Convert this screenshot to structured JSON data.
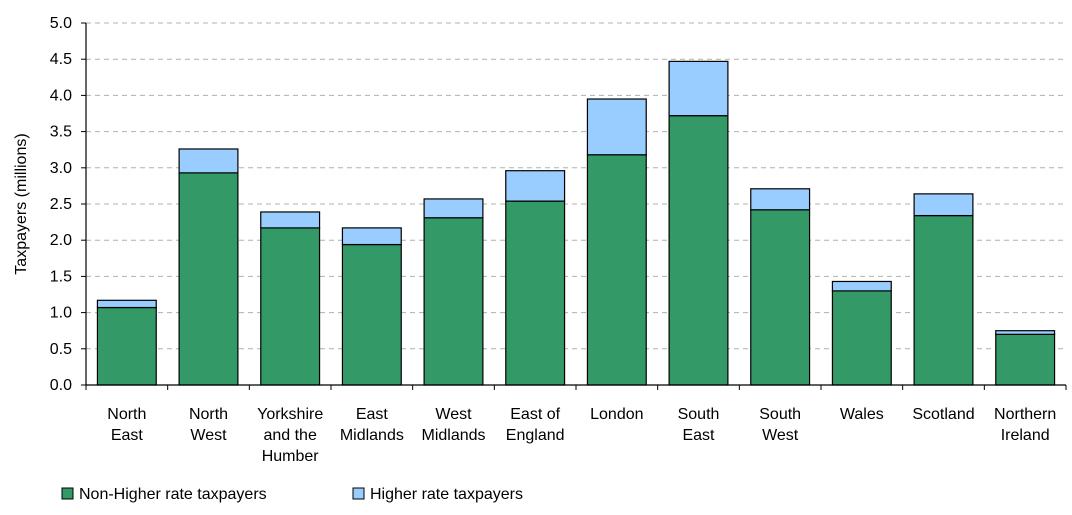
{
  "chart_data": {
    "type": "bar",
    "stacked": true,
    "ylabel": "Taxpayers (millions)",
    "ylim": [
      0,
      5
    ],
    "yticks": [
      "0.0",
      "0.5",
      "1.0",
      "1.5",
      "2.0",
      "2.5",
      "3.0",
      "3.5",
      "4.0",
      "4.5",
      "5.0"
    ],
    "grid": true,
    "legend_position": "bottom-left",
    "categories": [
      [
        "North",
        "East"
      ],
      [
        "North",
        "West"
      ],
      [
        "Yorkshire",
        "and the",
        "Humber"
      ],
      [
        "East",
        "Midlands"
      ],
      [
        "West",
        "Midlands"
      ],
      [
        "East of",
        "England"
      ],
      [
        "London"
      ],
      [
        "South",
        "East"
      ],
      [
        "South",
        "West"
      ],
      [
        "Wales"
      ],
      [
        "Scotland"
      ],
      [
        "Northern",
        "Ireland"
      ]
    ],
    "series": [
      {
        "name": "Non-Higher rate taxpayers",
        "color": "#339966",
        "values": [
          1.07,
          2.93,
          2.17,
          1.94,
          2.31,
          2.54,
          3.18,
          3.72,
          2.42,
          1.3,
          2.34,
          0.7
        ]
      },
      {
        "name": "Higher rate taxpayers",
        "color": "#99ccff",
        "values": [
          0.1,
          0.33,
          0.22,
          0.23,
          0.26,
          0.42,
          0.77,
          0.75,
          0.29,
          0.13,
          0.3,
          0.05
        ]
      }
    ]
  }
}
